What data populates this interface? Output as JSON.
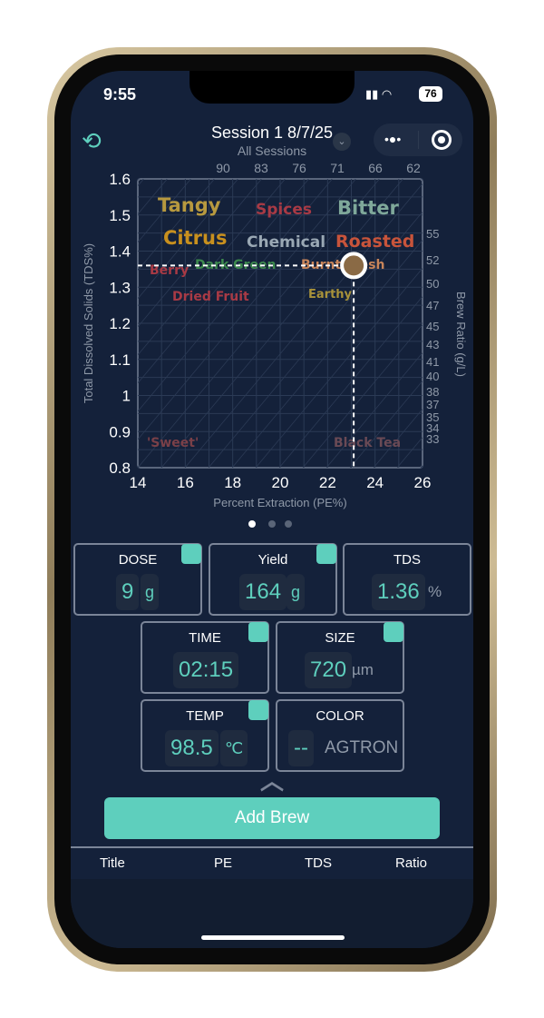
{
  "status": {
    "time": "9:55",
    "battery": "76"
  },
  "header": {
    "title": "Session 1 8/7/25",
    "subtitle": "All Sessions"
  },
  "chart_data": {
    "type": "scatter",
    "xlabel": "Percent Extraction (PE%)",
    "ylabel": "Total Dissolved Solids (TDS%)",
    "y2label": "Brew Ratio (g/L)",
    "xlim": [
      14,
      26
    ],
    "ylim": [
      0.8,
      1.6
    ],
    "xticks": [
      "14",
      "16",
      "18",
      "20",
      "22",
      "24",
      "26"
    ],
    "yticks": [
      "0.8",
      "0.9",
      "1",
      "1.1",
      "1.2",
      "1.3",
      "1.4",
      "1.5",
      "1.6"
    ],
    "top_ticks": [
      "90",
      "83",
      "76",
      "71",
      "66",
      "62"
    ],
    "right_ticks": [
      "55",
      "52",
      "50",
      "47",
      "45",
      "43",
      "41",
      "40",
      "38",
      "37",
      "35",
      "34",
      "33"
    ],
    "grid": true,
    "point": {
      "x": 23.1,
      "y": 1.36,
      "color": "#8a6a45"
    },
    "flavors": [
      {
        "text": "Tangy",
        "color": "#b7993f"
      },
      {
        "text": "Spices",
        "color": "#a83a45"
      },
      {
        "text": "Bitter",
        "color": "#7fa89a"
      },
      {
        "text": "Citrus",
        "color": "#c8901e"
      },
      {
        "text": "Chemical",
        "color": "#9aa8b4"
      },
      {
        "text": "Roasted",
        "color": "#c8543b"
      },
      {
        "text": "Berry",
        "color": "#a83a45"
      },
      {
        "text": "Dark Green",
        "color": "#3d8a4e"
      },
      {
        "text": "Burnt Fresh",
        "color": "#c8855a"
      },
      {
        "text": "Dried Fruit",
        "color": "#a83a45"
      },
      {
        "text": "Earthy",
        "color": "#a8923a"
      },
      {
        "text": "'Sweet'",
        "color": "#7a4048"
      },
      {
        "text": "Black Tea",
        "color": "#6a4a55"
      }
    ]
  },
  "fields": {
    "dose": {
      "label": "DOSE",
      "value": "9",
      "unit": "g"
    },
    "yield": {
      "label": "Yield",
      "value": "164",
      "unit": "g"
    },
    "tds": {
      "label": "TDS",
      "value": "1.36",
      "unit": "%"
    },
    "time": {
      "label": "TIME",
      "value": "02:15"
    },
    "size": {
      "label": "SIZE",
      "value": "720",
      "unit": "µm"
    },
    "temp": {
      "label": "TEMP",
      "value": "98.5",
      "unit": "℃"
    },
    "color": {
      "label": "COLOR",
      "value": "--",
      "unit": "AGTRON"
    }
  },
  "add_brew": "Add Brew",
  "table": {
    "headers": [
      "Title",
      "PE",
      "TDS",
      "Ratio"
    ]
  },
  "accent": "#5ecfbd"
}
